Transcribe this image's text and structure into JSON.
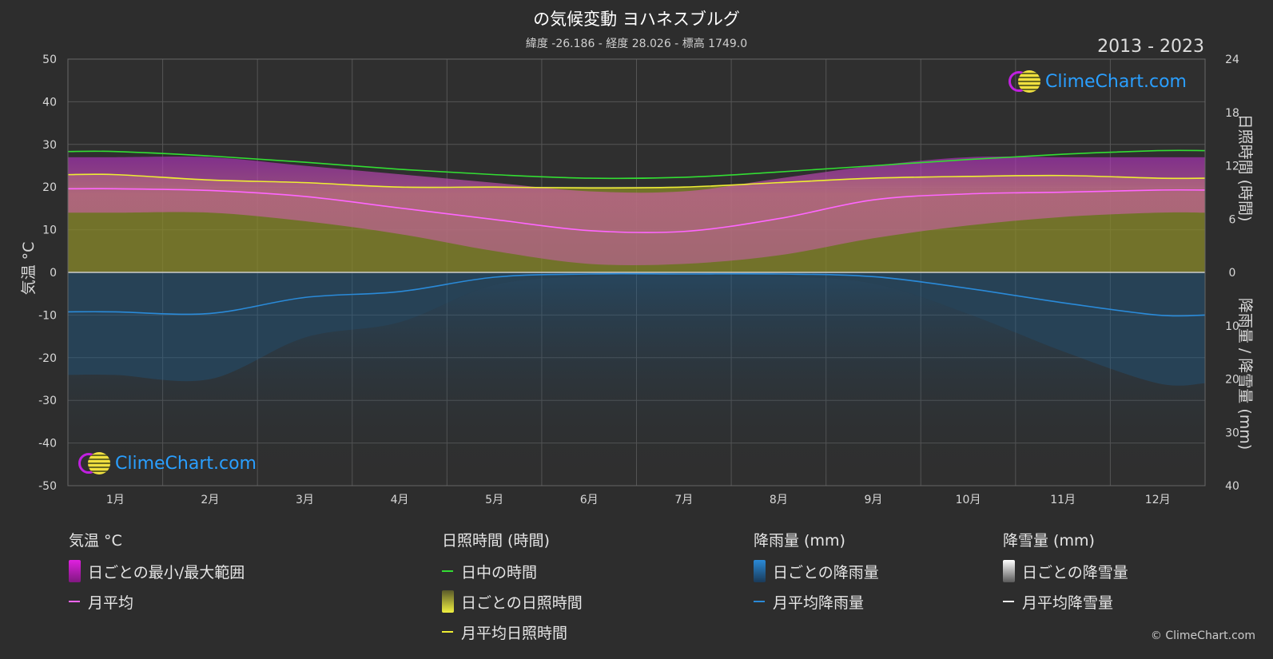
{
  "title": "の気候変動 ヨハネスブルグ",
  "subtitle": "緯度 -26.186 - 経度 28.026 - 標高 1749.0",
  "years": "2013 - 2023",
  "copyright": "© ClimeChart.com",
  "logo_text": "ClimeChart.com",
  "colors": {
    "background": "#2d2d2d",
    "daylight": "#33dd33",
    "temp_avg": "#ff66ff",
    "sunshine_avg": "#eeee33",
    "rain_avg": "#2a8ad8",
    "temp_range": "#d040d0",
    "sunshine_fill": "#8a8a2a",
    "rain_fill": "#1e5a88"
  },
  "chart_data": {
    "type": "line",
    "months": [
      "1月",
      "2月",
      "3月",
      "4月",
      "5月",
      "6月",
      "7月",
      "8月",
      "9月",
      "10月",
      "11月",
      "12月"
    ],
    "axes": {
      "left": {
        "label": "気温 °C",
        "ticks": [
          50,
          40,
          30,
          20,
          10,
          0,
          -10,
          -20,
          -30,
          -40,
          -50
        ],
        "range": [
          -50,
          50
        ]
      },
      "right_top": {
        "label": "日照時間 (時間)",
        "ticks": [
          24,
          18,
          12,
          6,
          0
        ],
        "range": [
          0,
          24
        ]
      },
      "right_bottom": {
        "label": "降雨量 / 降雪量 (mm)",
        "ticks": [
          0,
          10,
          20,
          30,
          40
        ],
        "range": [
          0,
          40
        ]
      }
    },
    "series": [
      {
        "name": "日中の時間",
        "unit": "hours",
        "values": [
          13.6,
          13.1,
          12.4,
          11.6,
          11.0,
          10.6,
          10.7,
          11.3,
          12.0,
          12.7,
          13.3,
          13.7
        ]
      },
      {
        "name": "月平均日照時間",
        "unit": "hours",
        "values": [
          11.0,
          10.4,
          10.1,
          9.6,
          9.6,
          9.5,
          9.6,
          10.1,
          10.6,
          10.8,
          10.9,
          10.6
        ]
      },
      {
        "name": "月平均",
        "unit": "°C",
        "values": [
          19.6,
          19.2,
          17.8,
          15.1,
          12.4,
          9.8,
          9.6,
          12.6,
          17.0,
          18.4,
          18.8,
          19.3
        ]
      },
      {
        "name": "月平均降雨量",
        "unit": "mm",
        "values": [
          7.4,
          7.7,
          4.7,
          3.6,
          0.9,
          0.3,
          0.3,
          0.3,
          0.8,
          3.0,
          5.7,
          8.0
        ]
      },
      {
        "name": "日ごとの最小/最大範囲",
        "unit": "°C",
        "min": [
          14,
          14,
          12,
          9,
          5,
          2,
          2,
          4,
          8,
          11,
          13,
          14
        ],
        "max": [
          27,
          27,
          25,
          23,
          21,
          19,
          19,
          22,
          25,
          27,
          27,
          27
        ]
      }
    ],
    "grid": true
  },
  "legend": {
    "temp": {
      "title": "気温 °C",
      "items": [
        "日ごとの最小/最大範囲",
        "月平均"
      ]
    },
    "sun": {
      "title": "日照時間 (時間)",
      "items": [
        "日中の時間",
        "日ごとの日照時間",
        "月平均日照時間"
      ]
    },
    "rain": {
      "title": "降雨量 (mm)",
      "items": [
        "日ごとの降雨量",
        "月平均降雨量"
      ]
    },
    "snow": {
      "title": "降雪量 (mm)",
      "items": [
        "日ごとの降雪量",
        "月平均降雪量"
      ]
    }
  }
}
